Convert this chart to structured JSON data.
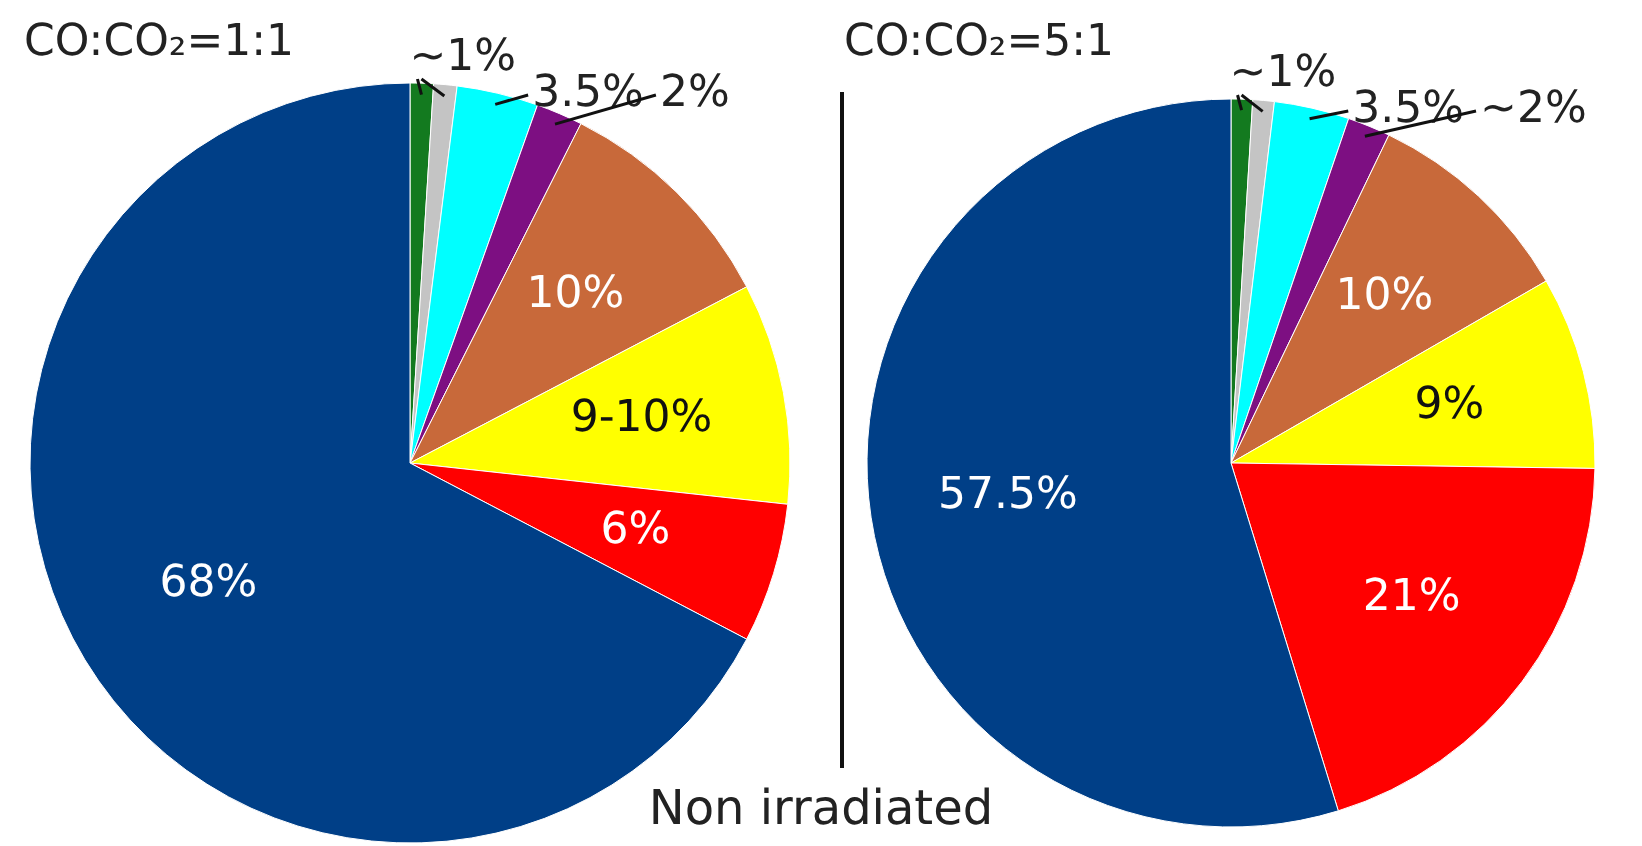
{
  "chart_data": [
    {
      "type": "pie",
      "title": "CO:CO₂=1:1",
      "categories": [
        null,
        null,
        null,
        null,
        null,
        null,
        null,
        null
      ],
      "values": [
        1,
        1,
        3.5,
        2,
        10,
        9.5,
        6,
        68
      ],
      "value_labels": [
        "~1%",
        null,
        "3.5%",
        "2%",
        "10%",
        "9-10%",
        "6%",
        "68%"
      ],
      "colors": [
        "#137a1f",
        "#c4c4c4",
        "#00ffff",
        "#7d0f82",
        "#c8693a",
        "#ffff00",
        "#ff0000",
        "#003f87"
      ],
      "legend": false,
      "annotations": [
        "Non irradiated"
      ]
    },
    {
      "type": "pie",
      "title": "CO:CO₂=5:1",
      "categories": [
        null,
        null,
        null,
        null,
        null,
        null,
        null,
        null
      ],
      "values": [
        1,
        1,
        3.5,
        2,
        10,
        9,
        21,
        57.5
      ],
      "value_labels": [
        "~1%",
        null,
        "3.5%",
        "~2%",
        "10%",
        "9%",
        "21%",
        "57.5%"
      ],
      "colors": [
        "#137a1f",
        "#c4c4c4",
        "#00ffff",
        "#7d0f82",
        "#c8693a",
        "#ffff00",
        "#ff0000",
        "#003f87"
      ],
      "legend": false
    }
  ]
}
